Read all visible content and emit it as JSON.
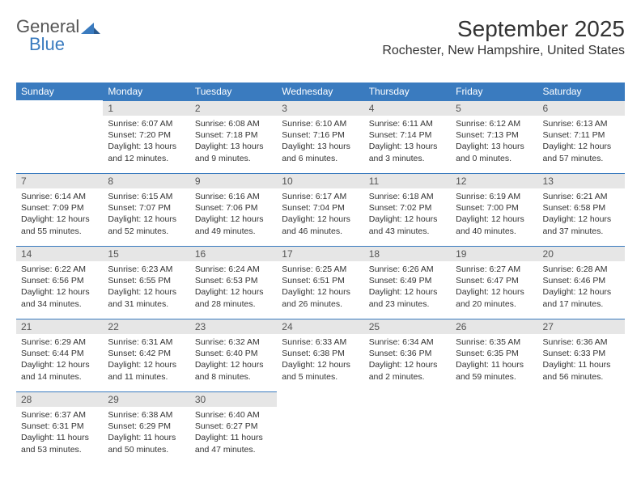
{
  "logo": {
    "text_general": "General",
    "text_blue": "Blue"
  },
  "title": "September 2025",
  "location": "Rochester, New Hampshire, United States",
  "day_headers": [
    "Sunday",
    "Monday",
    "Tuesday",
    "Wednesday",
    "Thursday",
    "Friday",
    "Saturday"
  ],
  "colors": {
    "header_bg": "#3a7bbf",
    "header_text": "#ffffff",
    "daynum_bg": "#e6e6e6",
    "cell_border": "#3a7bbf",
    "body_text": "#333333",
    "logo_gray": "#555555",
    "logo_blue": "#3a7bbf"
  },
  "fonts": {
    "title_size_pt": 21,
    "location_size_pt": 12,
    "header_size_pt": 9,
    "body_size_pt": 8
  },
  "weeks": [
    [
      {
        "num": "",
        "sunrise": "",
        "sunset": "",
        "daylight": ""
      },
      {
        "num": "1",
        "sunrise": "Sunrise: 6:07 AM",
        "sunset": "Sunset: 7:20 PM",
        "daylight": "Daylight: 13 hours and 12 minutes."
      },
      {
        "num": "2",
        "sunrise": "Sunrise: 6:08 AM",
        "sunset": "Sunset: 7:18 PM",
        "daylight": "Daylight: 13 hours and 9 minutes."
      },
      {
        "num": "3",
        "sunrise": "Sunrise: 6:10 AM",
        "sunset": "Sunset: 7:16 PM",
        "daylight": "Daylight: 13 hours and 6 minutes."
      },
      {
        "num": "4",
        "sunrise": "Sunrise: 6:11 AM",
        "sunset": "Sunset: 7:14 PM",
        "daylight": "Daylight: 13 hours and 3 minutes."
      },
      {
        "num": "5",
        "sunrise": "Sunrise: 6:12 AM",
        "sunset": "Sunset: 7:13 PM",
        "daylight": "Daylight: 13 hours and 0 minutes."
      },
      {
        "num": "6",
        "sunrise": "Sunrise: 6:13 AM",
        "sunset": "Sunset: 7:11 PM",
        "daylight": "Daylight: 12 hours and 57 minutes."
      }
    ],
    [
      {
        "num": "7",
        "sunrise": "Sunrise: 6:14 AM",
        "sunset": "Sunset: 7:09 PM",
        "daylight": "Daylight: 12 hours and 55 minutes."
      },
      {
        "num": "8",
        "sunrise": "Sunrise: 6:15 AM",
        "sunset": "Sunset: 7:07 PM",
        "daylight": "Daylight: 12 hours and 52 minutes."
      },
      {
        "num": "9",
        "sunrise": "Sunrise: 6:16 AM",
        "sunset": "Sunset: 7:06 PM",
        "daylight": "Daylight: 12 hours and 49 minutes."
      },
      {
        "num": "10",
        "sunrise": "Sunrise: 6:17 AM",
        "sunset": "Sunset: 7:04 PM",
        "daylight": "Daylight: 12 hours and 46 minutes."
      },
      {
        "num": "11",
        "sunrise": "Sunrise: 6:18 AM",
        "sunset": "Sunset: 7:02 PM",
        "daylight": "Daylight: 12 hours and 43 minutes."
      },
      {
        "num": "12",
        "sunrise": "Sunrise: 6:19 AM",
        "sunset": "Sunset: 7:00 PM",
        "daylight": "Daylight: 12 hours and 40 minutes."
      },
      {
        "num": "13",
        "sunrise": "Sunrise: 6:21 AM",
        "sunset": "Sunset: 6:58 PM",
        "daylight": "Daylight: 12 hours and 37 minutes."
      }
    ],
    [
      {
        "num": "14",
        "sunrise": "Sunrise: 6:22 AM",
        "sunset": "Sunset: 6:56 PM",
        "daylight": "Daylight: 12 hours and 34 minutes."
      },
      {
        "num": "15",
        "sunrise": "Sunrise: 6:23 AM",
        "sunset": "Sunset: 6:55 PM",
        "daylight": "Daylight: 12 hours and 31 minutes."
      },
      {
        "num": "16",
        "sunrise": "Sunrise: 6:24 AM",
        "sunset": "Sunset: 6:53 PM",
        "daylight": "Daylight: 12 hours and 28 minutes."
      },
      {
        "num": "17",
        "sunrise": "Sunrise: 6:25 AM",
        "sunset": "Sunset: 6:51 PM",
        "daylight": "Daylight: 12 hours and 26 minutes."
      },
      {
        "num": "18",
        "sunrise": "Sunrise: 6:26 AM",
        "sunset": "Sunset: 6:49 PM",
        "daylight": "Daylight: 12 hours and 23 minutes."
      },
      {
        "num": "19",
        "sunrise": "Sunrise: 6:27 AM",
        "sunset": "Sunset: 6:47 PM",
        "daylight": "Daylight: 12 hours and 20 minutes."
      },
      {
        "num": "20",
        "sunrise": "Sunrise: 6:28 AM",
        "sunset": "Sunset: 6:46 PM",
        "daylight": "Daylight: 12 hours and 17 minutes."
      }
    ],
    [
      {
        "num": "21",
        "sunrise": "Sunrise: 6:29 AM",
        "sunset": "Sunset: 6:44 PM",
        "daylight": "Daylight: 12 hours and 14 minutes."
      },
      {
        "num": "22",
        "sunrise": "Sunrise: 6:31 AM",
        "sunset": "Sunset: 6:42 PM",
        "daylight": "Daylight: 12 hours and 11 minutes."
      },
      {
        "num": "23",
        "sunrise": "Sunrise: 6:32 AM",
        "sunset": "Sunset: 6:40 PM",
        "daylight": "Daylight: 12 hours and 8 minutes."
      },
      {
        "num": "24",
        "sunrise": "Sunrise: 6:33 AM",
        "sunset": "Sunset: 6:38 PM",
        "daylight": "Daylight: 12 hours and 5 minutes."
      },
      {
        "num": "25",
        "sunrise": "Sunrise: 6:34 AM",
        "sunset": "Sunset: 6:36 PM",
        "daylight": "Daylight: 12 hours and 2 minutes."
      },
      {
        "num": "26",
        "sunrise": "Sunrise: 6:35 AM",
        "sunset": "Sunset: 6:35 PM",
        "daylight": "Daylight: 11 hours and 59 minutes."
      },
      {
        "num": "27",
        "sunrise": "Sunrise: 6:36 AM",
        "sunset": "Sunset: 6:33 PM",
        "daylight": "Daylight: 11 hours and 56 minutes."
      }
    ],
    [
      {
        "num": "28",
        "sunrise": "Sunrise: 6:37 AM",
        "sunset": "Sunset: 6:31 PM",
        "daylight": "Daylight: 11 hours and 53 minutes."
      },
      {
        "num": "29",
        "sunrise": "Sunrise: 6:38 AM",
        "sunset": "Sunset: 6:29 PM",
        "daylight": "Daylight: 11 hours and 50 minutes."
      },
      {
        "num": "30",
        "sunrise": "Sunrise: 6:40 AM",
        "sunset": "Sunset: 6:27 PM",
        "daylight": "Daylight: 11 hours and 47 minutes."
      },
      {
        "num": "",
        "sunrise": "",
        "sunset": "",
        "daylight": ""
      },
      {
        "num": "",
        "sunrise": "",
        "sunset": "",
        "daylight": ""
      },
      {
        "num": "",
        "sunrise": "",
        "sunset": "",
        "daylight": ""
      },
      {
        "num": "",
        "sunrise": "",
        "sunset": "",
        "daylight": ""
      }
    ]
  ]
}
